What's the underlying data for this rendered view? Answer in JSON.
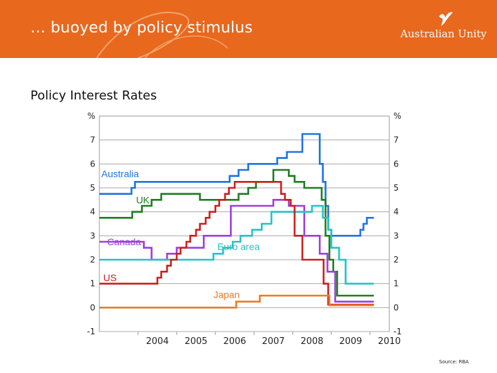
{
  "header": {
    "title": "… buoyed by policy stimulus",
    "logo_text": "Australian Unity",
    "bg_color": "#e8681e"
  },
  "subtitle": "Policy Interest Rates",
  "source": "Source: RBA",
  "chart_data": {
    "type": "line",
    "title": "Policy Interest Rates",
    "xlabel": "",
    "ylabel": "%",
    "y_unit": "%",
    "xlim": [
      2003.0,
      2010.5
    ],
    "ylim": [
      -1,
      8
    ],
    "y_ticks": [
      -1,
      0,
      1,
      2,
      3,
      4,
      5,
      6,
      7
    ],
    "x_tick_labels": [
      "2004",
      "2005",
      "2006",
      "2007",
      "2008",
      "2009",
      "2010"
    ],
    "grid": true,
    "legend": "inline labels",
    "series": [
      {
        "name": "Australia",
        "color": "#1f73e0",
        "x": [
          2003.0,
          2003.83,
          2003.92,
          2006.37,
          2006.6,
          2006.85,
          2007.6,
          2007.85,
          2008.25,
          2008.7,
          2008.78,
          2008.85,
          2008.92,
          2009.0,
          2009.25,
          2009.75,
          2009.83,
          2009.92,
          2010.1
        ],
        "y": [
          4.75,
          5.0,
          5.25,
          5.5,
          5.75,
          6.0,
          6.25,
          6.5,
          7.25,
          6.0,
          5.25,
          4.25,
          3.25,
          3.0,
          3.0,
          3.25,
          3.5,
          3.75,
          3.75
        ]
      },
      {
        "name": "UK",
        "color": "#1e7d1e",
        "x": [
          2003.0,
          2003.85,
          2004.1,
          2004.35,
          2004.6,
          2005.6,
          2006.6,
          2006.85,
          2007.05,
          2007.5,
          2007.9,
          2008.05,
          2008.3,
          2008.75,
          2008.85,
          2008.95,
          2009.05,
          2009.15,
          2010.1
        ],
        "y": [
          3.75,
          4.0,
          4.25,
          4.5,
          4.75,
          4.5,
          4.75,
          5.0,
          5.25,
          5.75,
          5.5,
          5.25,
          5.0,
          4.5,
          3.0,
          2.0,
          1.5,
          0.5,
          0.5
        ]
      },
      {
        "name": "Canada",
        "color": "#9b3ee0",
        "x": [
          2003.0,
          2004.15,
          2004.35,
          2004.75,
          2005.0,
          2005.7,
          2006.4,
          2007.5,
          2007.9,
          2008.3,
          2008.7,
          2008.9,
          2009.1,
          2010.1
        ],
        "y": [
          2.75,
          2.5,
          2.0,
          2.25,
          2.5,
          3.0,
          4.25,
          4.5,
          4.25,
          3.0,
          2.25,
          1.5,
          0.25,
          0.25
        ]
      },
      {
        "name": "Euro area",
        "color": "#22c4c4",
        "x": [
          2003.0,
          2005.95,
          2006.2,
          2006.45,
          2006.65,
          2006.95,
          2007.2,
          2007.45,
          2008.5,
          2008.78,
          2008.92,
          2009.0,
          2009.2,
          2009.37,
          2010.1
        ],
        "y": [
          2.0,
          2.25,
          2.5,
          2.75,
          3.0,
          3.25,
          3.5,
          4.0,
          4.25,
          3.75,
          3.25,
          2.5,
          2.0,
          1.0,
          1.0
        ]
      },
      {
        "name": "US",
        "color": "#cc1e1e",
        "x": [
          2003.0,
          2004.5,
          2004.6,
          2004.75,
          2004.85,
          2005.0,
          2005.1,
          2005.25,
          2005.35,
          2005.5,
          2005.6,
          2005.75,
          2005.85,
          2006.0,
          2006.1,
          2006.25,
          2006.35,
          2006.5,
          2007.7,
          2007.8,
          2007.95,
          2008.05,
          2008.25,
          2008.8,
          2008.92,
          2010.1
        ],
        "y": [
          1.0,
          1.25,
          1.5,
          1.75,
          2.0,
          2.25,
          2.5,
          2.75,
          3.0,
          3.25,
          3.5,
          3.75,
          4.0,
          4.25,
          4.5,
          4.75,
          5.0,
          5.25,
          4.75,
          4.5,
          4.25,
          3.0,
          2.0,
          1.0,
          0.125,
          0.125
        ]
      },
      {
        "name": "Japan",
        "color": "#ee7a1e",
        "x": [
          2003.0,
          2006.54,
          2007.15,
          2008.95,
          2010.1
        ],
        "y": [
          0.0,
          0.25,
          0.5,
          0.1,
          0.1
        ]
      }
    ]
  }
}
